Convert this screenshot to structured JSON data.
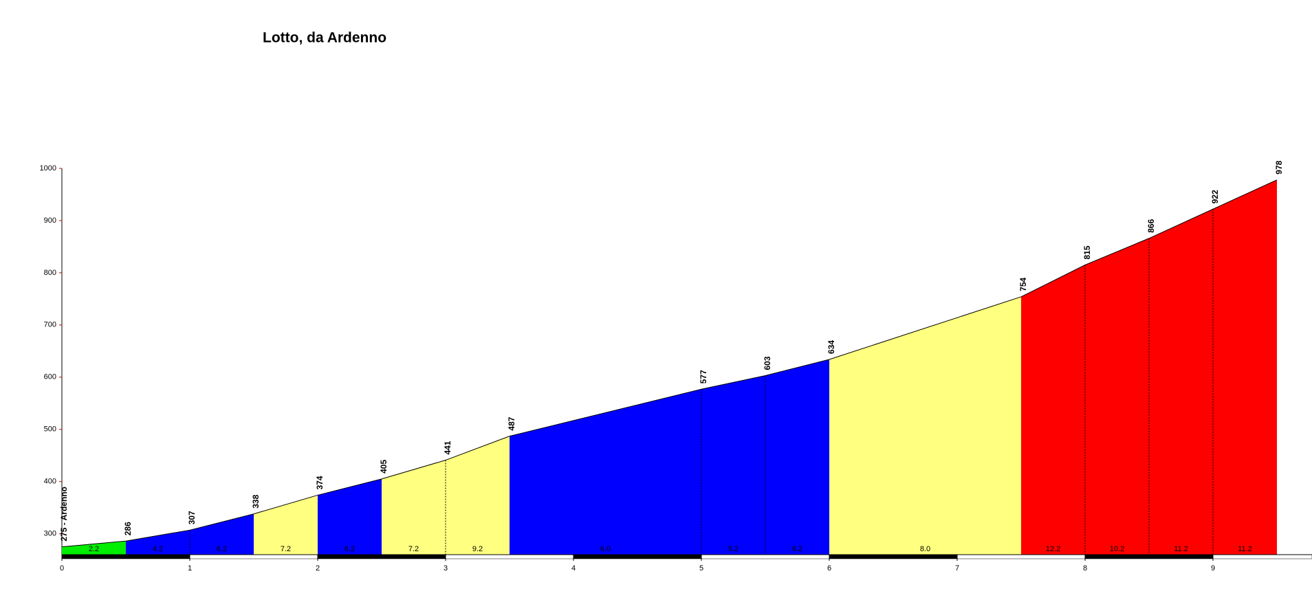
{
  "chart_data": {
    "type": "area",
    "title": "Lotto, da Ardenno",
    "x": [
      0,
      0.5,
      1,
      1.5,
      2,
      2.5,
      3,
      3.5,
      5,
      5.5,
      6,
      7.5,
      8,
      8.5,
      9,
      9.5
    ],
    "values": [
      275,
      286,
      307,
      338,
      374,
      405,
      441,
      487,
      577,
      603,
      634,
      754,
      815,
      866,
      922,
      978
    ],
    "value_labels": [
      "275 - Ardenno",
      "286",
      "307",
      "338",
      "374",
      "405",
      "441",
      "487",
      "577",
      "603",
      "634",
      "754",
      "815",
      "866",
      "922",
      "978"
    ],
    "gradients": [
      2.2,
      4.2,
      6.2,
      7.2,
      6.2,
      7.2,
      9.2,
      6.0,
      5.2,
      6.2,
      8.0,
      12.2,
      10.2,
      11.2,
      11.2
    ],
    "gradient_labels": [
      "2.2",
      "4.2",
      "6.2",
      "7.2",
      "6.2",
      "7.2",
      "9.2",
      "6.0",
      "5.2",
      "6.2",
      "8.0",
      "12.2",
      "10.2",
      "11.2",
      "11.2"
    ],
    "segment_colors": [
      "#00ee00",
      "#0000ff",
      "#0000ff",
      "#ffff80",
      "#0000ff",
      "#ffff80",
      "#ffff80",
      "#0000ff",
      "#0000ff",
      "#0000ff",
      "#ffff80",
      "#ff0000",
      "#ff0000",
      "#ff0000",
      "#ff0000"
    ],
    "xlim": [
      0,
      9.5
    ],
    "xticks": [
      0,
      1,
      2,
      3,
      4,
      5,
      6,
      7,
      8,
      9
    ],
    "ylim": [
      260,
      1000
    ],
    "yticks": [
      300,
      400,
      500,
      600,
      700,
      800,
      900,
      1000
    ]
  }
}
